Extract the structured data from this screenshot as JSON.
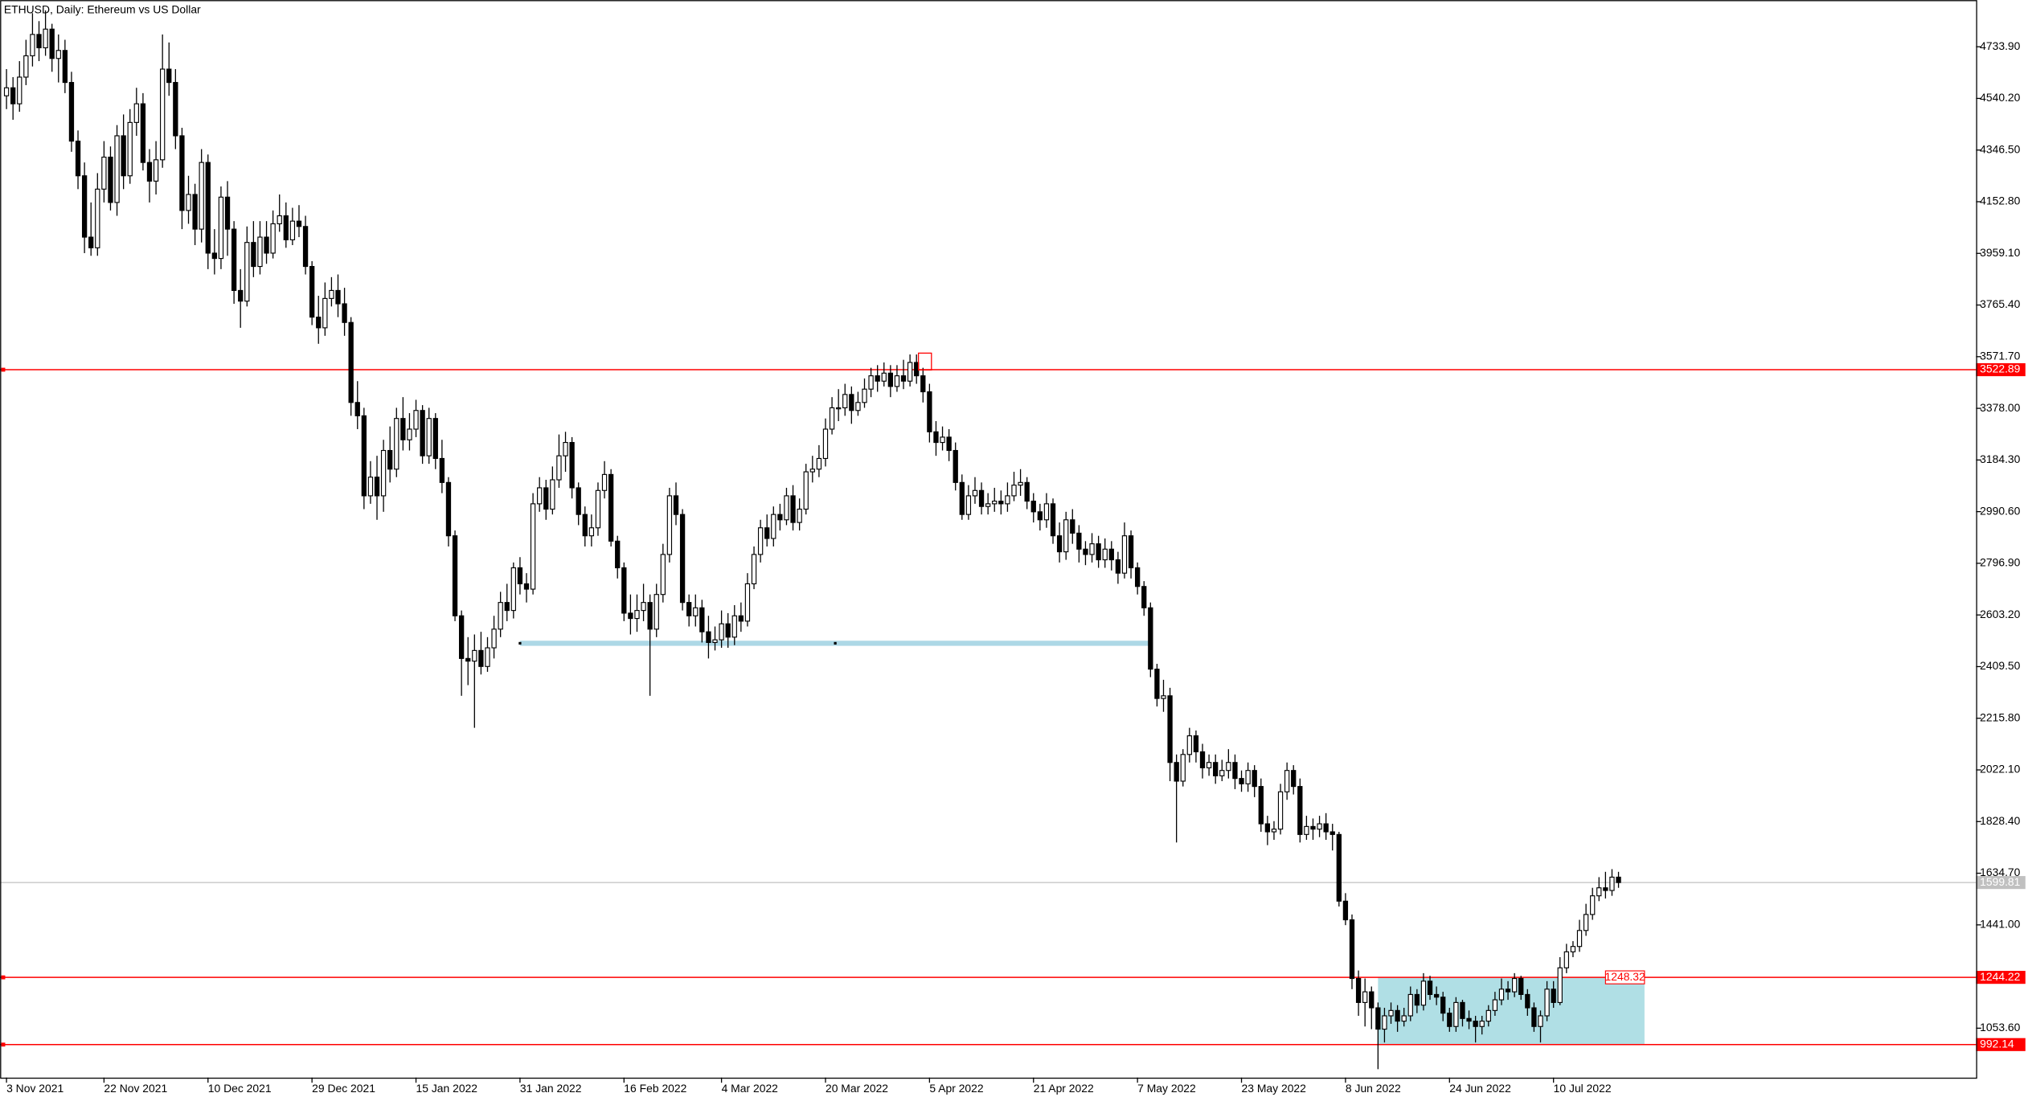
{
  "chart_data": {
    "type": "candlestick",
    "title": "ETHUSD, Daily:  Ethereum vs US Dollar",
    "up_color": "#ffffff",
    "down_color": "#000000",
    "xlim": [
      -1,
      303
    ],
    "ylim": [
      868.6,
      4909.2
    ],
    "xticks": [
      {
        "value": 0,
        "label": "3 Nov 2021"
      },
      {
        "value": 15,
        "label": "22 Nov 2021"
      },
      {
        "value": 31,
        "label": "10 Dec 2021"
      },
      {
        "value": 47,
        "label": "29 Dec 2021"
      },
      {
        "value": 63,
        "label": "15 Jan 2022"
      },
      {
        "value": 79,
        "label": "31 Jan 2022"
      },
      {
        "value": 95,
        "label": "16 Feb 2022"
      },
      {
        "value": 110,
        "label": "4 Mar 2022"
      },
      {
        "value": 126,
        "label": "20 Mar 2022"
      },
      {
        "value": 142,
        "label": "5 Apr 2022"
      },
      {
        "value": 158,
        "label": "21 Apr 2022"
      },
      {
        "value": 174,
        "label": "7 May 2022"
      },
      {
        "value": 190,
        "label": "23 May 2022"
      },
      {
        "value": 206,
        "label": "8 Jun 2022"
      },
      {
        "value": 222,
        "label": "24 Jun 2022"
      },
      {
        "value": 238,
        "label": "10 Jul 2022"
      }
    ],
    "yticks": [
      {
        "value": 4733.9,
        "label": "4733.90"
      },
      {
        "value": 4540.2,
        "label": "4540.20"
      },
      {
        "value": 4346.5,
        "label": "4346.50"
      },
      {
        "value": 4152.8,
        "label": "4152.80"
      },
      {
        "value": 3959.1,
        "label": "3959.10"
      },
      {
        "value": 3765.4,
        "label": "3765.40"
      },
      {
        "value": 3571.7,
        "label": "3571.70"
      },
      {
        "value": 3378.0,
        "label": "3378.00"
      },
      {
        "value": 3184.3,
        "label": "3184.30"
      },
      {
        "value": 2990.6,
        "label": "2990.60"
      },
      {
        "value": 2796.9,
        "label": "2796.90"
      },
      {
        "value": 2603.2,
        "label": "2603.20"
      },
      {
        "value": 2409.5,
        "label": "2409.50"
      },
      {
        "value": 2215.8,
        "label": "2215.80"
      },
      {
        "value": 2022.1,
        "label": "2022.10"
      },
      {
        "value": 1828.4,
        "label": "1828.40"
      },
      {
        "value": 1634.7,
        "label": "1634.70"
      },
      {
        "value": 1441.0,
        "label": "1441.00"
      },
      {
        "value": 1053.6,
        "label": "1053.60"
      }
    ],
    "levels": [
      {
        "value": 3522.89,
        "color": "#ff0000"
      },
      {
        "value": 1244.22,
        "color": "#ff0000"
      },
      {
        "value": 992.14,
        "color": "#ff0000"
      }
    ],
    "current": {
      "value": 1599.81,
      "color": "#c0c0c0"
    },
    "support": {
      "value": 2497,
      "x": [
        79,
        176
      ],
      "color": "#add8e6"
    },
    "zone": {
      "x": [
        211,
        252
      ],
      "y": [
        992.14,
        1244.22
      ],
      "color": "#b0dfe5",
      "label": 1248.32
    },
    "open": [
      4550,
      4580,
      4520,
      4620,
      4700,
      4780,
      4730,
      4800,
      4690,
      4720,
      4600,
      4380,
      4250,
      4020,
      3980,
      4200,
      4320,
      4150,
      4400,
      4250,
      4450,
      4520,
      4300,
      4230,
      4310,
      4650,
      4600,
      4400,
      4120,
      4180,
      4050,
      4300,
      3960,
      3940,
      4170,
      4050,
      3820,
      3780,
      4000,
      3910,
      4020,
      3960,
      4070,
      4100,
      4010,
      4080,
      4060,
      3910,
      3720,
      3680,
      3790,
      3820,
      3770,
      3700,
      3400,
      3350,
      3050,
      3120,
      3050,
      3220,
      3150,
      3340,
      3260,
      3300,
      3370,
      3200,
      3340,
      3190,
      3100,
      2900,
      2600,
      2440,
      2430,
      2470,
      2410,
      2480,
      2550,
      2650,
      2620,
      2780,
      2720,
      2700,
      3020,
      3080,
      3000,
      3110,
      3200,
      3250,
      3080,
      2980,
      2900,
      2930,
      3070,
      3130,
      2880,
      2780,
      2610,
      2590,
      2620,
      2650,
      2550,
      2680,
      2830,
      3050,
      2980,
      2650,
      2600,
      2630,
      2540,
      2500,
      2510,
      2570,
      2520,
      2600,
      2580,
      2720,
      2830,
      2930,
      2890,
      2980,
      2960,
      3050,
      2950,
      3000,
      3140,
      3150,
      3190,
      3300,
      3380,
      3380,
      3430,
      3370,
      3400,
      3450,
      3500,
      3480,
      3510,
      3460,
      3500,
      3480,
      3550,
      3500,
      3440,
      3290,
      3250,
      3270,
      3220,
      3100,
      2980,
      3050,
      3070,
      3010,
      3020,
      3030,
      3020,
      3050,
      3090,
      3100,
      3030,
      2990,
      2960,
      3020,
      2900,
      2840,
      2960,
      2910,
      2850,
      2830,
      2870,
      2810,
      2850,
      2810,
      2760,
      2900,
      2780,
      2710,
      2630,
      2400,
      2290,
      2300,
      2050,
      1980,
      2080,
      2150,
      2090,
      2030,
      2050,
      2000,
      2020,
      2050,
      1990,
      1970,
      2020,
      1960,
      1820,
      1790,
      1800,
      1940,
      2020,
      1960,
      1780,
      1810,
      1800,
      1820,
      1790,
      1780,
      1530,
      1460,
      1240,
      1150,
      1190,
      1130,
      1050,
      1100,
      1120,
      1080,
      1100,
      1180,
      1140,
      1230,
      1180,
      1170,
      1110,
      1060,
      1150,
      1090,
      1080,
      1060,
      1080,
      1120,
      1160,
      1200,
      1190,
      1240,
      1180,
      1130,
      1060,
      1100,
      1200,
      1150,
      1280,
      1340,
      1360,
      1420,
      1480,
      1550,
      1580,
      1570,
      1620
    ],
    "high": [
      4650,
      4620,
      4680,
      4760,
      4860,
      4830,
      4870,
      4820,
      4780,
      4760,
      4640,
      4420,
      4300,
      4150,
      4260,
      4380,
      4360,
      4440,
      4480,
      4500,
      4580,
      4560,
      4350,
      4380,
      4780,
      4750,
      4650,
      4430,
      4250,
      4220,
      4350,
      4330,
      4050,
      4210,
      4230,
      4080,
      3900,
      4060,
      4080,
      4080,
      4080,
      4120,
      4180,
      4150,
      4130,
      4140,
      4100,
      3930,
      3800,
      3850,
      3870,
      3880,
      3830,
      3720,
      3480,
      3380,
      3180,
      3200,
      3260,
      3310,
      3380,
      3420,
      3360,
      3410,
      3390,
      3380,
      3360,
      3260,
      3120,
      2920,
      2620,
      2520,
      2530,
      2540,
      2520,
      2600,
      2690,
      2720,
      2800,
      2820,
      2760,
      3060,
      3120,
      3110,
      3160,
      3280,
      3290,
      3270,
      3100,
      3010,
      2980,
      3100,
      3180,
      3150,
      2900,
      2800,
      2680,
      2680,
      2720,
      2680,
      2720,
      2870,
      3080,
      3100,
      3000,
      2680,
      2680,
      2660,
      2600,
      2560,
      2620,
      2610,
      2640,
      2650,
      2760,
      2860,
      2960,
      2980,
      3010,
      3020,
      3080,
      3090,
      3040,
      3170,
      3200,
      3240,
      3340,
      3420,
      3450,
      3470,
      3460,
      3440,
      3490,
      3530,
      3540,
      3550,
      3540,
      3540,
      3560,
      3580,
      3580,
      3530,
      3470,
      3330,
      3310,
      3300,
      3250,
      3130,
      3090,
      3120,
      3100,
      3060,
      3080,
      3070,
      3100,
      3140,
      3150,
      3120,
      3060,
      3020,
      3060,
      3040,
      2950,
      2990,
      3000,
      2940,
      2880,
      2910,
      2900,
      2890,
      2880,
      2840,
      2950,
      2920,
      2800,
      2730,
      2650,
      2420,
      2360,
      2330,
      2080,
      2100,
      2180,
      2170,
      2120,
      2080,
      2080,
      2060,
      2100,
      2080,
      2020,
      2050,
      2040,
      1990,
      1850,
      1830,
      1970,
      2050,
      2040,
      1990,
      1850,
      1840,
      1850,
      1860,
      1820,
      1790,
      1560,
      1480,
      1270,
      1240,
      1210,
      1150,
      1130,
      1150,
      1140,
      1130,
      1210,
      1200,
      1260,
      1250,
      1210,
      1190,
      1130,
      1170,
      1160,
      1120,
      1100,
      1100,
      1140,
      1190,
      1240,
      1230,
      1260,
      1250,
      1200,
      1150,
      1120,
      1230,
      1230,
      1320,
      1370,
      1380,
      1460,
      1520,
      1580,
      1620,
      1640,
      1650,
      1640
    ],
    "low": [
      4500,
      4460,
      4490,
      4590,
      4660,
      4680,
      4700,
      4640,
      4600,
      4560,
      4340,
      4200,
      3960,
      3950,
      3950,
      4150,
      4120,
      4100,
      4200,
      4220,
      4400,
      4270,
      4150,
      4180,
      4280,
      4550,
      4350,
      4050,
      4070,
      3990,
      4000,
      3900,
      3880,
      3900,
      3950,
      3770,
      3680,
      3760,
      3870,
      3880,
      3920,
      3940,
      4040,
      3980,
      3990,
      4020,
      3880,
      3690,
      3620,
      3650,
      3760,
      3720,
      3650,
      3350,
      3300,
      3000,
      3020,
      2960,
      2990,
      3100,
      3120,
      3220,
      3220,
      3270,
      3170,
      3170,
      3150,
      3060,
      2860,
      2580,
      2300,
      2340,
      2180,
      2380,
      2390,
      2440,
      2520,
      2580,
      2590,
      2680,
      2650,
      2680,
      2990,
      2960,
      2980,
      3080,
      3140,
      3040,
      2940,
      2860,
      2860,
      2900,
      3040,
      2860,
      2740,
      2580,
      2530,
      2540,
      2580,
      2300,
      2520,
      2650,
      2800,
      2940,
      2620,
      2560,
      2560,
      2500,
      2440,
      2470,
      2480,
      2480,
      2490,
      2540,
      2560,
      2700,
      2800,
      2860,
      2860,
      2920,
      2940,
      2920,
      2920,
      2980,
      3100,
      3120,
      3160,
      3280,
      3330,
      3350,
      3320,
      3350,
      3380,
      3420,
      3440,
      3460,
      3420,
      3440,
      3450,
      3460,
      3470,
      3400,
      3250,
      3200,
      3220,
      3180,
      3070,
      2960,
      2960,
      3020,
      2980,
      2980,
      2990,
      2980,
      2990,
      3030,
      3050,
      3000,
      2950,
      2920,
      2930,
      2870,
      2800,
      2810,
      2870,
      2800,
      2790,
      2800,
      2780,
      2780,
      2770,
      2720,
      2740,
      2740,
      2680,
      2600,
      2370,
      2260,
      2240,
      1980,
      1750,
      1960,
      2050,
      2050,
      1990,
      2000,
      1970,
      1980,
      1990,
      1950,
      1940,
      1940,
      1920,
      1790,
      1740,
      1760,
      1780,
      1910,
      1930,
      1750,
      1760,
      1760,
      1770,
      1760,
      1720,
      1510,
      1440,
      1200,
      1100,
      1060,
      1050,
      900,
      1000,
      1070,
      1040,
      1060,
      1080,
      1110,
      1120,
      1160,
      1140,
      1080,
      1040,
      1040,
      1060,
      1050,
      1000,
      1030,
      1060,
      1100,
      1140,
      1160,
      1170,
      1160,
      1100,
      1040,
      1000,
      1080,
      1130,
      1140,
      1260,
      1320,
      1340,
      1400,
      1460,
      1530,
      1540,
      1550,
      1580
    ],
    "close": [
      4580,
      4520,
      4620,
      4700,
      4780,
      4730,
      4800,
      4690,
      4720,
      4600,
      4380,
      4250,
      4020,
      3980,
      4200,
      4320,
      4150,
      4400,
      4250,
      4450,
      4520,
      4300,
      4230,
      4310,
      4650,
      4600,
      4400,
      4120,
      4180,
      4050,
      4300,
      3960,
      3940,
      4170,
      4050,
      3820,
      3780,
      4000,
      3910,
      4020,
      3960,
      4070,
      4100,
      4010,
      4080,
      4060,
      3910,
      3720,
      3680,
      3790,
      3820,
      3770,
      3700,
      3400,
      3350,
      3050,
      3120,
      3050,
      3220,
      3150,
      3340,
      3260,
      3300,
      3370,
      3200,
      3340,
      3190,
      3100,
      2900,
      2600,
      2440,
      2430,
      2470,
      2410,
      2480,
      2550,
      2650,
      2620,
      2780,
      2720,
      2700,
      3020,
      3080,
      3000,
      3110,
      3200,
      3250,
      3080,
      2980,
      2900,
      2930,
      3070,
      3130,
      2880,
      2780,
      2610,
      2590,
      2620,
      2650,
      2550,
      2680,
      2830,
      3050,
      2980,
      2650,
      2600,
      2630,
      2540,
      2500,
      2510,
      2570,
      2520,
      2600,
      2580,
      2720,
      2830,
      2930,
      2890,
      2980,
      2960,
      3050,
      2950,
      3000,
      3140,
      3150,
      3190,
      3300,
      3380,
      3380,
      3430,
      3370,
      3400,
      3450,
      3500,
      3480,
      3510,
      3460,
      3500,
      3480,
      3550,
      3500,
      3440,
      3290,
      3250,
      3270,
      3220,
      3100,
      2980,
      3050,
      3070,
      3010,
      3020,
      3030,
      3020,
      3050,
      3090,
      3100,
      3030,
      2990,
      2960,
      3020,
      2900,
      2840,
      2960,
      2910,
      2850,
      2830,
      2870,
      2810,
      2850,
      2810,
      2760,
      2900,
      2780,
      2710,
      2630,
      2400,
      2290,
      2300,
      2050,
      1980,
      2080,
      2150,
      2090,
      2030,
      2050,
      2000,
      2020,
      2050,
      1990,
      1970,
      2020,
      1960,
      1820,
      1790,
      1800,
      1940,
      2020,
      1960,
      1780,
      1810,
      1800,
      1820,
      1790,
      1780,
      1530,
      1460,
      1240,
      1150,
      1190,
      1130,
      1050,
      1100,
      1120,
      1080,
      1100,
      1180,
      1140,
      1230,
      1180,
      1170,
      1110,
      1060,
      1150,
      1090,
      1080,
      1060,
      1080,
      1120,
      1160,
      1200,
      1190,
      1240,
      1180,
      1130,
      1060,
      1100,
      1200,
      1150,
      1280,
      1340,
      1360,
      1420,
      1480,
      1550,
      1580,
      1570,
      1620,
      1599.81
    ]
  }
}
